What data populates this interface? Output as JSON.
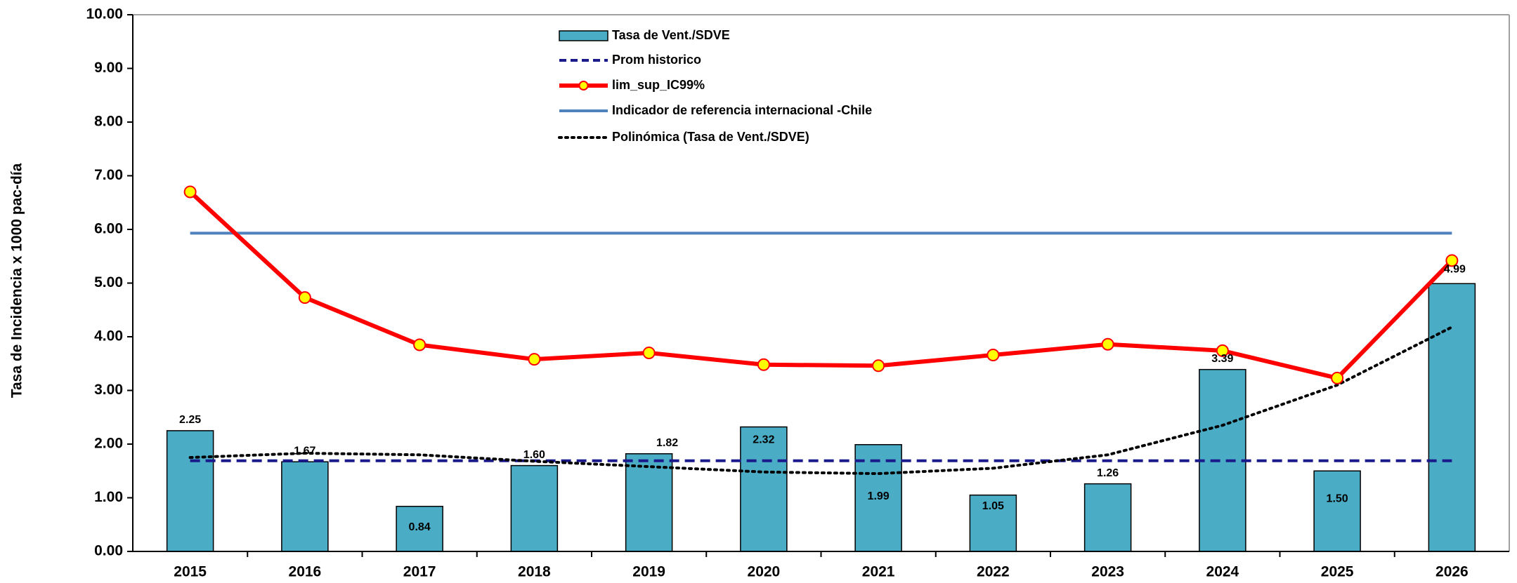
{
  "chart_data": {
    "type": "bar",
    "y_label": "Tasa de Incidencia x 1000 pac-día",
    "categories": [
      "2015",
      "2016",
      "2017",
      "2018",
      "2019",
      "2020",
      "2021",
      "2022",
      "2023",
      "2024",
      "2025",
      "2026"
    ],
    "ylim": [
      0,
      10
    ],
    "yticks": [
      {
        "value": 0,
        "label": "0.00"
      },
      {
        "value": 1,
        "label": "1.00"
      },
      {
        "value": 2,
        "label": "2.00"
      },
      {
        "value": 3,
        "label": "3.00"
      },
      {
        "value": 4,
        "label": "4.00"
      },
      {
        "value": 5,
        "label": "5.00"
      },
      {
        "value": 6,
        "label": "6.00"
      },
      {
        "value": 7,
        "label": "7.00"
      },
      {
        "value": 8,
        "label": "8.00"
      },
      {
        "value": 9,
        "label": "9.00"
      },
      {
        "value": 10,
        "label": "10.00"
      }
    ],
    "series": [
      {
        "name": "Tasa de Vent./SDVE",
        "type": "bar",
        "style": "bar",
        "color": "#4bacc6",
        "values": [
          2.25,
          1.67,
          0.84,
          1.6,
          1.82,
          2.32,
          1.99,
          1.05,
          1.26,
          3.39,
          1.5,
          4.99
        ],
        "value_labels": [
          "2.25",
          "1.67",
          "0.84",
          "1.60",
          "1.82",
          "2.32",
          "1.99",
          "1.05",
          "1.26",
          "3.39",
          "1.50",
          "4.99"
        ]
      },
      {
        "name": "Prom historico",
        "type": "line",
        "style": "dashed",
        "color": "#1a1a8c",
        "values": [
          1.69,
          1.69,
          1.69,
          1.69,
          1.69,
          1.69,
          1.69,
          1.69,
          1.69,
          1.69,
          1.69,
          1.69
        ]
      },
      {
        "name": "lim_sup_IC99%",
        "type": "line",
        "style": "markers",
        "color": "#ff0000",
        "marker_color": "#ffff00",
        "values": [
          6.7,
          4.73,
          3.85,
          3.58,
          3.7,
          3.48,
          3.46,
          3.66,
          3.86,
          3.74,
          3.23,
          5.42
        ]
      },
      {
        "name": "Indicador de referencia internacional -Chile",
        "type": "line",
        "style": "solid",
        "color": "#4f81bd",
        "values": [
          5.93,
          5.93,
          5.93,
          5.93,
          5.93,
          5.93,
          5.93,
          5.93,
          5.93,
          5.93,
          5.93,
          5.93
        ]
      },
      {
        "name": "Polinómica (Tasa de Vent./SDVE)",
        "type": "line",
        "style": "dotted",
        "color": "#000000",
        "values": [
          1.75,
          1.83,
          1.8,
          1.68,
          1.58,
          1.48,
          1.45,
          1.55,
          1.8,
          2.35,
          3.1,
          4.18
        ]
      }
    ]
  }
}
